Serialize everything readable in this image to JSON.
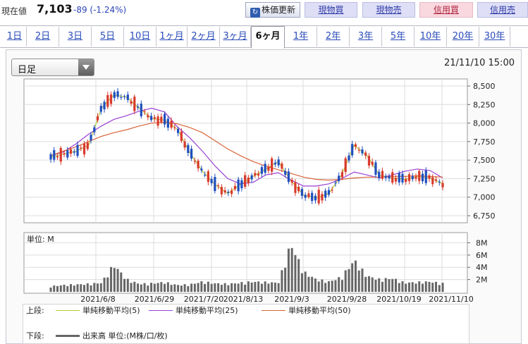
{
  "header": {
    "price_label": "現在値",
    "price_value": "7,103",
    "price_change": "-89 (-1.24%)",
    "refresh_label": "株価更新",
    "buy_label": "現物買",
    "sell_label": "現物売",
    "margin_buy_label": "信用買",
    "margin_sell_label": "信用売"
  },
  "period_tabs": [
    {
      "label": "1日"
    },
    {
      "label": "2日"
    },
    {
      "label": "3日"
    },
    {
      "label": "5日"
    },
    {
      "label": "10日"
    },
    {
      "label": "1ヶ月"
    },
    {
      "label": "2ヶ月"
    },
    {
      "label": "3ヶ月"
    },
    {
      "label": "6ヶ月",
      "active": true
    },
    {
      "label": "1年"
    },
    {
      "label": "2年"
    },
    {
      "label": "3年"
    },
    {
      "label": "5年"
    },
    {
      "label": "10年"
    },
    {
      "label": "20年"
    },
    {
      "label": "30年"
    }
  ],
  "chart_controls": {
    "interval_selected": "日足",
    "timestamp": "21/11/10 15:00"
  },
  "colors": {
    "up_candle": "#d93a2b",
    "down_candle": "#1f4fbf",
    "ma5": "#b5c93a",
    "ma25": "#9b3fd3",
    "ma50": "#d9653a",
    "volume": "#666666"
  },
  "chart_data": {
    "type": "line",
    "price_axis": {
      "ticks": [
        "8,500",
        "8,250",
        "8,000",
        "7,750",
        "7,500",
        "7,250",
        "7,000",
        "6,750"
      ],
      "range": [
        6750,
        8500
      ]
    },
    "volume_axis": {
      "label": "単位: M",
      "ticks": [
        "8M",
        "6M",
        "4M",
        "2M"
      ],
      "range": [
        0,
        8
      ]
    },
    "x_tick_labels": [
      "2021/6/8",
      "2021/6/29",
      "2021/7/20",
      "2021/8/13",
      "2021/9/3",
      "2021/9/28",
      "2021/10/19",
      "2021/11/10"
    ],
    "series": [
      {
        "name": "単純移動平均(5)",
        "values": [
          7540,
          7580,
          7620,
          7700,
          8200,
          8380,
          8350,
          8200,
          8060,
          8040,
          7920,
          7600,
          7350,
          7170,
          7050,
          7170,
          7280,
          7380,
          7480,
          7220,
          7030,
          6990,
          7050,
          7300,
          7700,
          7560,
          7300,
          7260,
          7240,
          7280,
          7260,
          7180
        ]
      },
      {
        "name": "単純移動平均(25)",
        "values": [
          7560,
          7610,
          7720,
          7850,
          7960,
          8050,
          8100,
          8160,
          8200,
          8150,
          7950,
          7800,
          7620,
          7420,
          7250,
          7180,
          7200,
          7300,
          7330,
          7230,
          7150,
          7150,
          7180,
          7250,
          7340,
          7300,
          7260,
          7300,
          7350,
          7380,
          7360,
          7260
        ]
      },
      {
        "name": "単純移動平均(50)",
        "values": [
          7560,
          7620,
          7680,
          7750,
          7820,
          7870,
          7910,
          7960,
          8000,
          8010,
          7990,
          7940,
          7870,
          7760,
          7650,
          7560,
          7480,
          7420,
          7370,
          7320,
          7270,
          7240,
          7230,
          7240,
          7260,
          7270,
          7270,
          7280,
          7280,
          7290,
          7280,
          7270
        ]
      }
    ],
    "volume_values": [
      1,
      1.2,
      1.3,
      1.4,
      1.6,
      4.8,
      2.2,
      1.4,
      1.5,
      1.7,
      1.2,
      1.3,
      1.8,
      1.5,
      1.4,
      1.6,
      1.8,
      1.7,
      1.6,
      8.5,
      3.5,
      2.2,
      1.8,
      2.6,
      5.6,
      2.8,
      2.2,
      2.4,
      1.6,
      1.7,
      1.8,
      1.5
    ],
    "legend": {
      "upper_label": "上段:",
      "ma5": "単純移動平均(5)",
      "ma25": "単純移動平均(25)",
      "ma50": "単純移動平均(50)",
      "lower_label": "下段:",
      "volume": "出来高 単位:(M株/口/枚)"
    }
  }
}
